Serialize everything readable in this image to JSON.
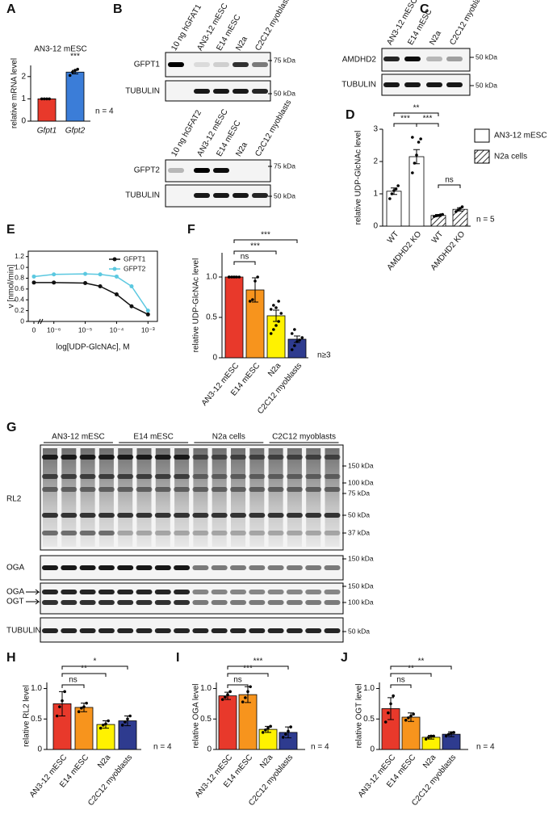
{
  "chart_data": [
    {
      "panel": "A",
      "type": "bar",
      "title": "AN3-12 mESC",
      "ylabel": "relative mRNA level",
      "categories": [
        "Gfpt1",
        "Gfpt2"
      ],
      "values": [
        1.0,
        2.2
      ],
      "errors": [
        0.0,
        0.08
      ],
      "points": [
        [
          1,
          1,
          1,
          1
        ],
        [
          2.05,
          2.2,
          2.28,
          2.33
        ]
      ],
      "colors": [
        "#e8392b",
        "#3b7dd8"
      ],
      "ylim": [
        0,
        2.5
      ],
      "yticks": [
        0,
        1,
        2
      ],
      "annotations": [
        "***"
      ],
      "note": "n = 4"
    },
    {
      "panel": "D",
      "type": "bar",
      "ylabel": "relative UDP-GlcNAc level",
      "categories": [
        "WT",
        "AMDHD2 KO",
        "WT",
        "AMDHD2 KO"
      ],
      "values": [
        1.08,
        2.15,
        0.33,
        0.52
      ],
      "errors": [
        0.1,
        0.22,
        0.03,
        0.05
      ],
      "points": [
        [
          0.85,
          1.0,
          1.1,
          1.15,
          1.25
        ],
        [
          1.65,
          1.95,
          2.2,
          2.6,
          2.7,
          2.75
        ],
        [
          0.3,
          0.32,
          0.33,
          0.35,
          0.36
        ],
        [
          0.45,
          0.5,
          0.55,
          0.6
        ]
      ],
      "colors": [
        "#ffffff",
        "#ffffff",
        "#ffffff",
        "#ffffff"
      ],
      "hatched": [
        false,
        false,
        true,
        true
      ],
      "ylim": [
        0,
        3
      ],
      "yticks": [
        0,
        1,
        2,
        3
      ],
      "annotations": [
        "**",
        "***",
        "***",
        "ns"
      ],
      "legend": [
        {
          "name": "AN3-12 mESC",
          "hatched": false
        },
        {
          "name": "N2a cells",
          "hatched": true
        }
      ],
      "note": "n = 5"
    },
    {
      "panel": "E",
      "type": "line",
      "xlabel": "log[UDP-GlcNAc], M",
      "ylabel": "v [nmol/min]",
      "x": [
        0,
        1e-06,
        1e-05,
        3e-05,
        0.0001,
        0.0003,
        0.001
      ],
      "series": [
        {
          "name": "GFPT1",
          "color": "#111111",
          "values": [
            0.72,
            0.72,
            0.71,
            0.65,
            0.5,
            0.28,
            0.13
          ]
        },
        {
          "name": "GFPT2",
          "color": "#5bc8e0",
          "values": [
            0.83,
            0.87,
            0.88,
            0.87,
            0.83,
            0.65,
            0.2
          ]
        }
      ],
      "xscale": "log",
      "xlim": [
        5e-07,
        0.002
      ],
      "xticks": [
        0,
        {
          "value": 1e-06,
          "label": "10⁻⁶"
        },
        {
          "value": 1e-05,
          "label": "10⁻⁵"
        },
        {
          "value": 0.0001,
          "label": "10⁻⁴"
        },
        {
          "value": 0.001,
          "label": "10⁻³"
        }
      ],
      "ylim": [
        0,
        1.3
      ],
      "yticks": [
        0,
        0.2,
        0.4,
        0.6,
        0.8,
        {
          "value": 1,
          "label": "1.0"
        },
        1.2
      ],
      "legend": "upper right"
    },
    {
      "panel": "F",
      "type": "bar",
      "ylabel": "relative UDP-GlcNAc level",
      "categories": [
        "AN3-12 mESC",
        "E14 mESC",
        "N2a",
        "C2C12 myoblasts"
      ],
      "values": [
        1.0,
        0.84,
        0.52,
        0.23
      ],
      "errors": [
        0.01,
        0.15,
        0.07,
        0.04
      ],
      "points": [
        [
          1,
          1,
          1,
          1,
          1,
          1
        ],
        [
          0.7,
          0.72,
          0.95,
          1.0
        ],
        [
          0.3,
          0.35,
          0.4,
          0.45,
          0.55,
          0.6,
          0.65,
          0.62,
          0.7
        ],
        [
          0.1,
          0.15,
          0.2,
          0.22,
          0.25,
          0.3,
          0.35
        ]
      ],
      "colors": [
        "#e8392b",
        "#f7941d",
        "#fff200",
        "#2e3b8f"
      ],
      "ylim": [
        0,
        1.3
      ],
      "yticks": [
        0,
        0.5,
        {
          "value": 1,
          "label": "1.0"
        }
      ],
      "annotations": [
        "***",
        "***",
        "ns"
      ],
      "note": "n≥3"
    },
    {
      "panel": "H",
      "type": "bar",
      "ylabel": "relative RL2 level",
      "categories": [
        "AN3-12 mESC",
        "E14 mESC",
        "N2a",
        "C2C12 myoblasts"
      ],
      "values": [
        0.75,
        0.69,
        0.41,
        0.47
      ],
      "errors": [
        0.2,
        0.07,
        0.06,
        0.08
      ],
      "points": [
        [
          0.55,
          0.7,
          0.8,
          0.95
        ],
        [
          0.62,
          0.68,
          0.7,
          0.76
        ],
        [
          0.35,
          0.4,
          0.42,
          0.47
        ],
        [
          0.4,
          0.45,
          0.5,
          0.55
        ]
      ],
      "colors": [
        "#e8392b",
        "#f7941d",
        "#fff200",
        "#2e3b8f"
      ],
      "ylim": [
        0,
        1.1
      ],
      "yticks": [
        0,
        0.5,
        {
          "value": 1,
          "label": "1.0"
        }
      ],
      "annotations": [
        "*",
        "**",
        "ns"
      ],
      "note": "n = 4"
    },
    {
      "panel": "I",
      "type": "bar",
      "ylabel": "relative OGA level",
      "categories": [
        "AN3-12 mESC",
        "E14 mESC",
        "N2a",
        "C2C12 myoblasts"
      ],
      "values": [
        0.88,
        0.9,
        0.33,
        0.28
      ],
      "errors": [
        0.06,
        0.13,
        0.05,
        0.09
      ],
      "points": [
        [
          0.82,
          0.86,
          0.9,
          0.95
        ],
        [
          0.78,
          0.85,
          0.95,
          1.03
        ],
        [
          0.28,
          0.32,
          0.35,
          0.38
        ],
        [
          0.2,
          0.25,
          0.3,
          0.37
        ]
      ],
      "colors": [
        "#e8392b",
        "#f7941d",
        "#fff200",
        "#2e3b8f"
      ],
      "ylim": [
        0,
        1.1
      ],
      "yticks": [
        0,
        0.5,
        {
          "value": 1,
          "label": "1.0"
        }
      ],
      "annotations": [
        "***",
        "***",
        "ns"
      ],
      "note": "n = 4"
    },
    {
      "panel": "J",
      "type": "bar",
      "ylabel": "relative OGT level",
      "categories": [
        "AN3-12 mESC",
        "E14 mESC",
        "N2a",
        "C2C12 myoblasts"
      ],
      "values": [
        0.67,
        0.53,
        0.2,
        0.25
      ],
      "errors": [
        0.18,
        0.07,
        0.03,
        0.04
      ],
      "points": [
        [
          0.45,
          0.6,
          0.75,
          0.88
        ],
        [
          0.48,
          0.52,
          0.55,
          0.58
        ],
        [
          0.17,
          0.2,
          0.22,
          0.22
        ],
        [
          0.22,
          0.25,
          0.27,
          0.28
        ]
      ],
      "colors": [
        "#e8392b",
        "#f7941d",
        "#fff200",
        "#2e3b8f"
      ],
      "ylim": [
        0,
        1.1
      ],
      "yticks": [
        0,
        0.5,
        {
          "value": 1,
          "label": "1.0"
        }
      ],
      "annotations": [
        "**",
        "**",
        "ns"
      ],
      "note": "n = 4"
    }
  ],
  "blots": [
    {
      "panel": "B",
      "lanes": [
        "10 ng hGFAT1",
        "AN3-12 mESC",
        "E14 mESC",
        "N2a",
        "C2C12 myoblasts"
      ],
      "rows": [
        {
          "label": "GFPT1",
          "markers": [
            "75 kDa"
          ]
        },
        {
          "label": "TUBULIN",
          "markers": [
            "50 kDa"
          ]
        }
      ]
    },
    {
      "lanes": [
        "10 ng hGFAT2",
        "AN3-12 mESC",
        "E14 mESC",
        "N2a",
        "C2C12 myoblasts"
      ],
      "rows": [
        {
          "label": "GFPT2",
          "markers": [
            "75 kDa"
          ]
        },
        {
          "label": "TUBULIN",
          "markers": [
            "50 kDa"
          ]
        }
      ]
    },
    {
      "panel": "C",
      "lanes": [
        "AN3-12 mESC",
        "E14 mESC",
        "N2a",
        "C2C12 myoblasts"
      ],
      "rows": [
        {
          "label": "AMDHD2",
          "markers": [
            "50 kDa"
          ]
        },
        {
          "label": "TUBULIN",
          "markers": [
            "50 kDa"
          ]
        }
      ]
    },
    {
      "panel": "G",
      "groups": [
        "AN3-12 mESC",
        "E14 mESC",
        "N2a cells",
        "C2C12 myoblasts"
      ],
      "rows": [
        {
          "label": "RL2",
          "markers": [
            "150 kDa",
            "100 kDa",
            "75 kDa",
            "50 kDa",
            "37 kDa"
          ]
        },
        {
          "label": "OGA",
          "markers": [
            "150 kDa"
          ]
        },
        {
          "labels": [
            "OGA",
            "OGT"
          ],
          "markers": [
            "150 kDa",
            "100 kDa"
          ]
        },
        {
          "label": "TUBULIN",
          "markers": [
            "50 kDa"
          ]
        }
      ]
    }
  ]
}
